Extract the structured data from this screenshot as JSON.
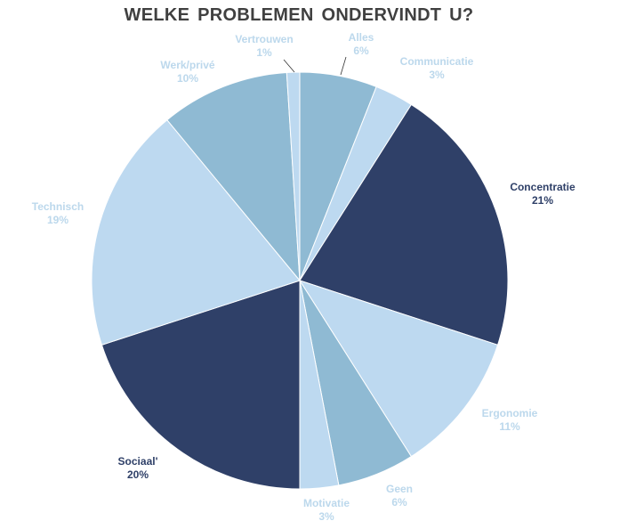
{
  "chart_data": {
    "type": "pie",
    "title": "WELKE PROBLEMEN  ONDERVINDT  U?",
    "slices": [
      {
        "label": "Alles",
        "value": 6,
        "value_label": "6%",
        "color": "#8fbad3",
        "label_color": "#bcd8ec"
      },
      {
        "label": "Communicatie",
        "value": 3,
        "value_label": "3%",
        "color": "#bdd9f0",
        "label_color": "#bcd8ec"
      },
      {
        "label": "Concentratie",
        "value": 21,
        "value_label": "21%",
        "color": "#2f4068",
        "label_color": "#2f4068"
      },
      {
        "label": "Ergonomie",
        "value": 11,
        "value_label": "11%",
        "color": "#bdd9f0",
        "label_color": "#bcd8ec"
      },
      {
        "label": "Geen",
        "value": 6,
        "value_label": "6%",
        "color": "#8fbad3",
        "label_color": "#bcd8ec"
      },
      {
        "label": "Motivatie",
        "value": 3,
        "value_label": "3%",
        "color": "#bdd9f0",
        "label_color": "#bcd8ec"
      },
      {
        "label": "Sociaal'",
        "value": 20,
        "value_label": "20%",
        "color": "#2f4068",
        "label_color": "#2f4068"
      },
      {
        "label": "Technisch",
        "value": 19,
        "value_label": "19%",
        "color": "#bdd9f0",
        "label_color": "#bcd8ec"
      },
      {
        "label": "Werk/privé",
        "value": 10,
        "value_label": "10%",
        "color": "#8fbad3",
        "label_color": "#bcd8ec"
      },
      {
        "label": "Vertrouwen",
        "value": 1,
        "value_label": "1%",
        "color": "#bdd9f0",
        "label_color": "#bcd8ec"
      }
    ]
  }
}
